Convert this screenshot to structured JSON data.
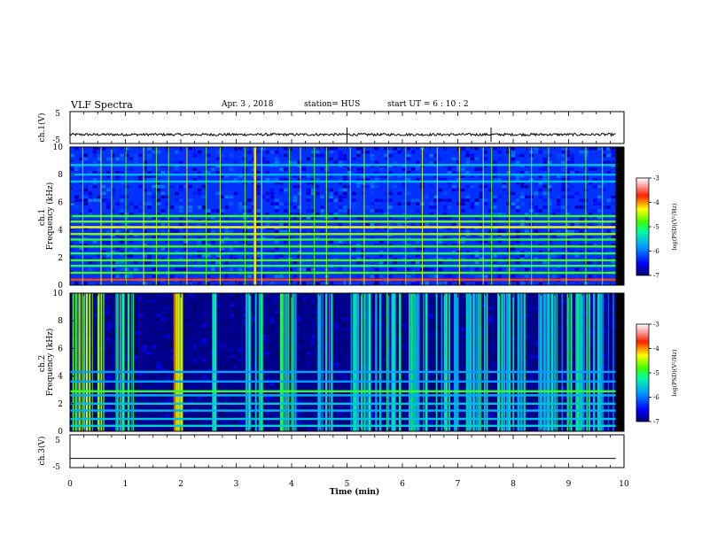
{
  "header": {
    "title": "VLF Spectra",
    "date": "Apr. 3 , 2018",
    "station": "station= HUS",
    "start_ut": "start UT = 6 : 10 : 2"
  },
  "chart_data": [
    {
      "type": "line",
      "id": "panel-ch1-wave",
      "ylabel": "ch.1(V)",
      "yticks": [
        5,
        -5
      ],
      "ylim": [
        -5,
        5
      ],
      "xlim": [
        0,
        10
      ],
      "series": [
        {
          "baseline": -2.2,
          "amplitude": 0.8
        }
      ],
      "color": "#000000"
    },
    {
      "type": "heatmap",
      "id": "panel-ch1-spec",
      "ylabel": "ch.1",
      "ylabel2": "Frequency (kHz)",
      "xlim": [
        0,
        9.85
      ],
      "ylim": [
        0,
        10
      ],
      "yticks": [
        0,
        2,
        4,
        6,
        8,
        10
      ],
      "colorbar": {
        "label": "log(PSD)(V²/Hz)",
        "ticks": [
          -3,
          -4,
          -5,
          -6,
          -7
        ],
        "range": [
          -7,
          -3
        ]
      },
      "background_level": -6.3,
      "bands_khz": [
        {
          "f": 0.4,
          "level": -3.8
        },
        {
          "f": 0.9,
          "level": -4.8
        },
        {
          "f": 1.4,
          "level": -5.0
        },
        {
          "f": 1.8,
          "level": -4.8
        },
        {
          "f": 2.3,
          "level": -5.0
        },
        {
          "f": 2.8,
          "level": -4.8
        },
        {
          "f": 3.3,
          "level": -4.9
        },
        {
          "f": 3.7,
          "level": -4.6
        },
        {
          "f": 4.2,
          "level": -4.3
        },
        {
          "f": 4.6,
          "level": -4.7
        },
        {
          "f": 5.0,
          "level": -4.9
        },
        {
          "f": 7.5,
          "level": -5.6
        },
        {
          "f": 8.0,
          "level": -5.7
        },
        {
          "f": 8.7,
          "level": -5.6
        }
      ],
      "spikes_min": [
        0.22,
        0.55,
        0.74,
        1.0,
        1.32,
        1.55,
        1.77,
        2.1,
        2.45,
        2.7,
        3.15,
        3.32,
        3.45,
        3.95,
        4.15,
        4.4,
        4.62,
        5.05,
        5.3,
        5.73,
        6.05,
        6.35,
        6.62,
        7.02,
        7.45,
        7.6,
        7.92,
        8.32,
        8.63,
        8.95,
        9.3,
        9.6
      ],
      "broadband_min": [
        3.32
      ]
    },
    {
      "type": "heatmap",
      "id": "panel-ch2-spec",
      "ylabel": "ch.2",
      "ylabel2": "Frequency (kHz)",
      "xlim": [
        0,
        9.85
      ],
      "ylim": [
        0,
        10
      ],
      "yticks": [
        0,
        2,
        4,
        6,
        8,
        10
      ],
      "colorbar": {
        "label": "log(PSD)(V²/Hz)",
        "ticks": [
          -3,
          -4,
          -5,
          -6,
          -7
        ],
        "range": [
          -7,
          -3
        ]
      },
      "background_level": -6.9,
      "bands_khz": [
        {
          "f": 0.4,
          "level": -5.5
        },
        {
          "f": 0.9,
          "level": -5.6
        },
        {
          "f": 1.5,
          "level": -5.7
        },
        {
          "f": 2.0,
          "level": -5.6
        },
        {
          "f": 2.6,
          "level": -5.7
        },
        {
          "f": 2.9,
          "level": -4.9
        },
        {
          "f": 3.6,
          "level": -5.8
        },
        {
          "f": 4.3,
          "level": -5.8
        }
      ],
      "bursts": [
        {
          "x0": 0.0,
          "x1": 0.6,
          "level": -4.6
        },
        {
          "x0": 0.8,
          "x1": 1.15,
          "level": -5.3
        },
        {
          "x0": 1.85,
          "x1": 2.2,
          "level": -4.4
        },
        {
          "x0": 2.45,
          "x1": 2.65,
          "level": -5.5
        },
        {
          "x0": 3.15,
          "x1": 3.5,
          "level": -5.4
        },
        {
          "x0": 3.75,
          "x1": 4.1,
          "level": -5.3
        },
        {
          "x0": 4.45,
          "x1": 4.75,
          "level": -5.5
        },
        {
          "x0": 5.0,
          "x1": 5.4,
          "level": -5.4
        },
        {
          "x0": 5.5,
          "x1": 5.95,
          "level": -5.4
        },
        {
          "x0": 6.1,
          "x1": 6.5,
          "level": -5.5
        },
        {
          "x0": 6.55,
          "x1": 7.0,
          "level": -5.4
        },
        {
          "x0": 7.1,
          "x1": 7.6,
          "level": -5.3
        },
        {
          "x0": 7.7,
          "x1": 8.2,
          "level": -5.4
        },
        {
          "x0": 8.4,
          "x1": 8.9,
          "level": -5.5
        },
        {
          "x0": 8.95,
          "x1": 9.45,
          "level": -5.4
        },
        {
          "x0": 9.5,
          "x1": 9.85,
          "level": -5.6
        }
      ]
    },
    {
      "type": "line",
      "id": "panel-ch3-wave",
      "ylabel": "ch.3(V)",
      "yticks": [
        5,
        -5
      ],
      "ylim": [
        -5,
        5
      ],
      "xlim": [
        0,
        10
      ],
      "series": [
        {
          "baseline": -2.2,
          "amplitude": 0.0
        }
      ],
      "color": "#000000"
    }
  ],
  "xaxis": {
    "label": "Time (min)",
    "ticks": [
      "0",
      "1",
      "2",
      "3",
      "4",
      "5",
      "6",
      "7",
      "8",
      "9",
      "10"
    ]
  }
}
